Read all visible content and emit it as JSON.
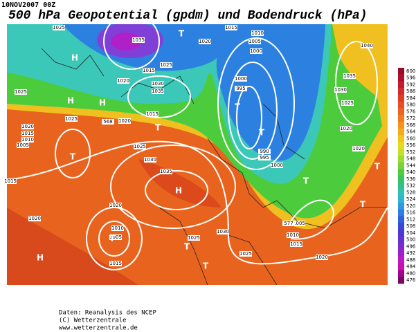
{
  "header": {
    "date": "10NOV2007 00Z",
    "title": "500 hPa Geopotential (gpdm) und Bodendruck (hPa)"
  },
  "isobar_labels": [
    1025,
    1035,
    1020,
    1015,
    1010,
    1005,
    1000,
    1015,
    1025,
    1020,
    1030,
    1035,
    1025,
    1015,
    1025,
    1020,
    568,
    1020,
    1015,
    1010,
    1005,
    1000,
    995,
    1025,
    1030,
    1035,
    990,
    995,
    1000,
    1035,
    1030,
    1025,
    1020,
    1020,
    1040,
    1015,
    1020,
    1010,
    1005,
    1020,
    1015,
    1025,
    1030,
    1025,
    1020,
    1010,
    1015,
    1005,
    577
  ],
  "pressure_centers": [
    "H",
    "H",
    "H",
    "T",
    "T",
    "T",
    "T",
    "T",
    "H",
    "T",
    "H",
    "T",
    "T",
    "T",
    "T",
    "T",
    "T"
  ],
  "colorbar": {
    "levels": [
      600,
      596,
      592,
      588,
      584,
      580,
      576,
      572,
      568,
      564,
      560,
      556,
      552,
      548,
      544,
      540,
      536,
      532,
      528,
      524,
      520,
      516,
      512,
      508,
      504,
      500,
      496,
      492,
      488,
      484,
      480,
      476
    ],
    "colors": [
      "#9c0a28",
      "#b01030",
      "#c41c30",
      "#d42c2c",
      "#e03c28",
      "#e85024",
      "#ec6420",
      "#f07c1c",
      "#f4941c",
      "#f4ac1c",
      "#f4c41c",
      "#e8d820",
      "#c8e028",
      "#a0dc30",
      "#78d438",
      "#50cc40",
      "#3cc45c",
      "#30c088",
      "#30c0b4",
      "#30b4d4",
      "#3098e0",
      "#307ce0",
      "#3060dc",
      "#3848d8",
      "#4c38d4",
      "#6830d0",
      "#8428cc",
      "#a020c8",
      "#bc18c4",
      "#cc10b0",
      "#a0088c",
      "#780868"
    ]
  },
  "footer": [
    "Daten: Reanalysis des NCEP",
    "(C) Wetterzentrale",
    "www.wetterzentrale.de"
  ]
}
